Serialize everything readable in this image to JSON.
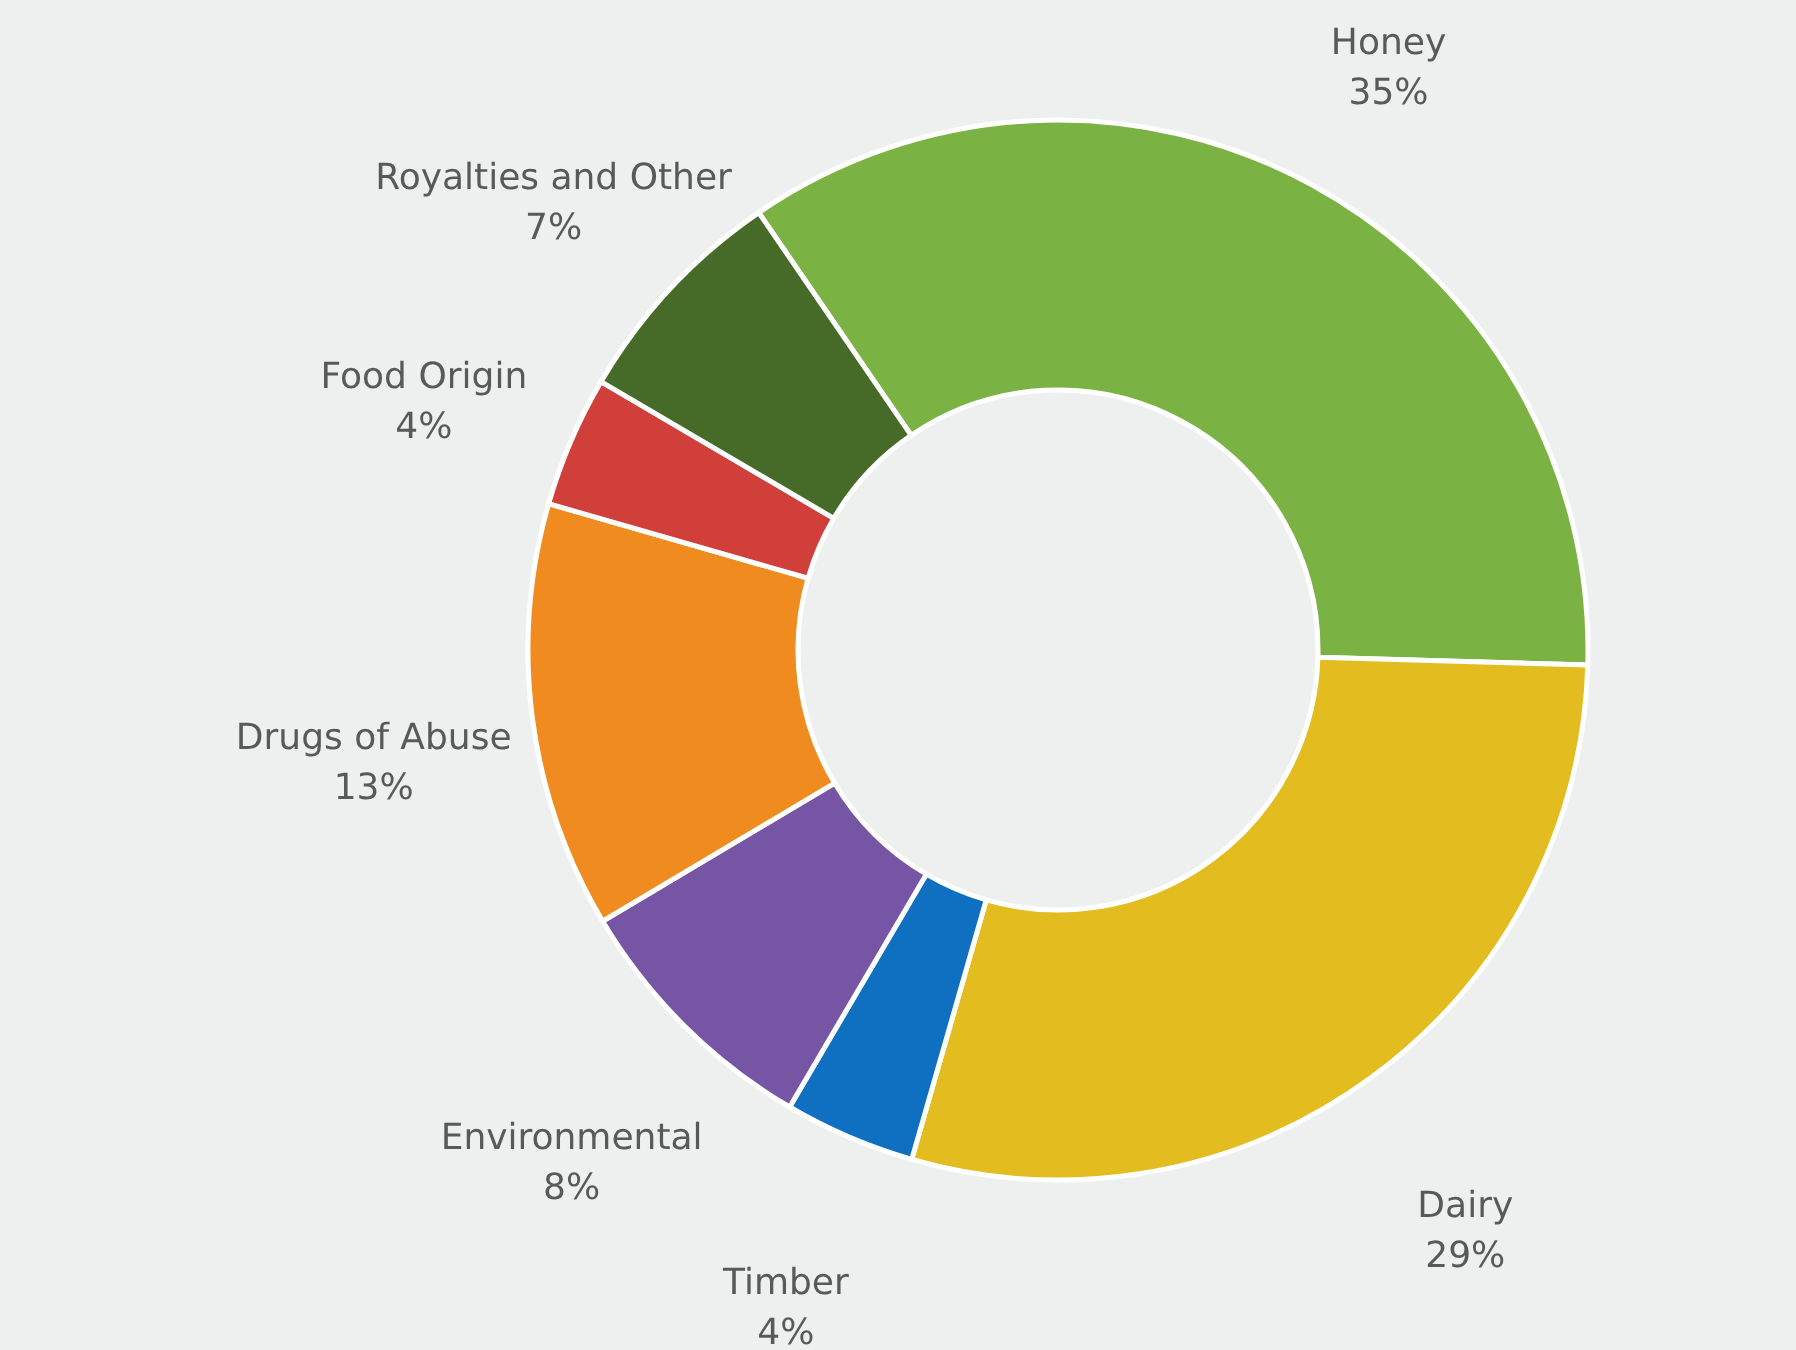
{
  "chart_data": {
    "type": "donut",
    "categories": [
      "Honey",
      "Dairy",
      "Timber",
      "Environmental",
      "Drugs of Abuse",
      "Food Origin",
      "Royalties and Other"
    ],
    "values": [
      35,
      29,
      4,
      8,
      13,
      4,
      7
    ],
    "value_labels": [
      "35%",
      "29%",
      "4%",
      "8%",
      "13%",
      "4%",
      "7%"
    ],
    "colors": [
      "#7ab244",
      "#e3bd1f",
      "#0f6fc0",
      "#7555a4",
      "#f08c1f",
      "#d13f3a",
      "#466b28"
    ]
  }
}
